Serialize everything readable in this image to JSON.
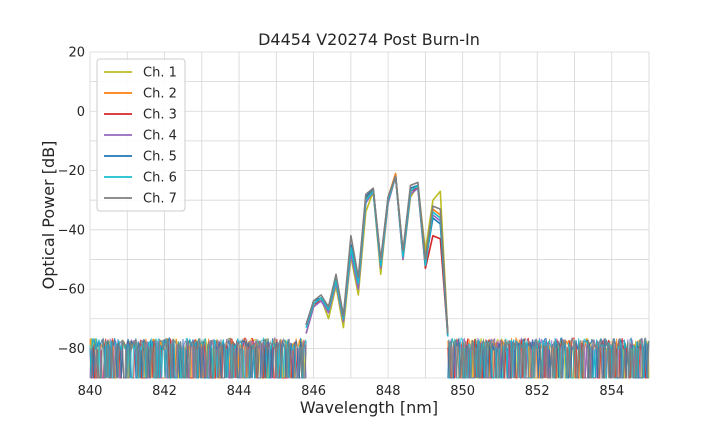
{
  "chart_data": {
    "type": "line",
    "title": "D4454 V20274 Post Burn-In",
    "xlabel": "Wavelength [nm]",
    "ylabel": "Optical Power [dB]",
    "xlim": [
      840,
      855
    ],
    "ylim": [
      -90,
      20
    ],
    "xticks": [
      840,
      842,
      844,
      846,
      848,
      850,
      852,
      854
    ],
    "yticks": [
      20,
      0,
      -20,
      -40,
      -60,
      -80
    ],
    "grid": true,
    "legend_position": "top-left",
    "noise_floor_db": -80,
    "series": [
      {
        "name": "Ch. 1",
        "color": "#bcbd22",
        "x": [
          845.8,
          846.0,
          846.2,
          846.4,
          846.6,
          846.8,
          847.0,
          847.2,
          847.4,
          847.6,
          847.8,
          848.0,
          848.2,
          848.4,
          848.6,
          848.8,
          849.0,
          849.2,
          849.4,
          849.6
        ],
        "y": [
          -75,
          -66,
          -63,
          -70,
          -59,
          -73,
          -49,
          -62,
          -34,
          -27,
          -55,
          -31,
          -22,
          -50,
          -29,
          -25,
          -47,
          -30,
          -27,
          -75
        ]
      },
      {
        "name": "Ch. 2",
        "color": "#ff7f0e",
        "x": [
          845.8,
          846.0,
          846.2,
          846.4,
          846.6,
          846.8,
          847.0,
          847.2,
          847.4,
          847.6,
          847.8,
          848.0,
          848.2,
          848.4,
          848.6,
          848.8,
          849.0,
          849.2,
          849.4,
          849.6
        ],
        "y": [
          -72,
          -65,
          -63,
          -67,
          -56,
          -70,
          -47,
          -58,
          -30,
          -26,
          -52,
          -29,
          -21,
          -48,
          -26,
          -25,
          -50,
          -33,
          -35,
          -75
        ]
      },
      {
        "name": "Ch. 3",
        "color": "#d62728",
        "x": [
          845.8,
          846.0,
          846.2,
          846.4,
          846.6,
          846.8,
          847.0,
          847.2,
          847.4,
          847.6,
          847.8,
          848.0,
          848.2,
          848.4,
          848.6,
          848.8,
          849.0,
          849.2,
          849.4,
          849.6
        ],
        "y": [
          -72,
          -65,
          -64,
          -67,
          -57,
          -70,
          -47,
          -58,
          -30,
          -27,
          -52,
          -30,
          -22,
          -49,
          -27,
          -26,
          -53,
          -42,
          -43,
          -76
        ]
      },
      {
        "name": "Ch. 4",
        "color": "#9467bd",
        "x": [
          845.8,
          846.0,
          846.2,
          846.4,
          846.6,
          846.8,
          847.0,
          847.2,
          847.4,
          847.6,
          847.8,
          848.0,
          848.2,
          848.4,
          848.6,
          848.8,
          849.0,
          849.2,
          849.4,
          849.6
        ],
        "y": [
          -75,
          -66,
          -64,
          -68,
          -58,
          -71,
          -48,
          -60,
          -31,
          -27,
          -53,
          -31,
          -22,
          -50,
          -28,
          -26,
          -52,
          -35,
          -37,
          -76
        ]
      },
      {
        "name": "Ch. 5",
        "color": "#1f77b4",
        "x": [
          845.8,
          846.0,
          846.2,
          846.4,
          846.6,
          846.8,
          847.0,
          847.2,
          847.4,
          847.6,
          847.8,
          848.0,
          848.2,
          848.4,
          848.6,
          848.8,
          849.0,
          849.2,
          849.4,
          849.6
        ],
        "y": [
          -72,
          -64,
          -63,
          -66,
          -56,
          -69,
          -45,
          -57,
          -29,
          -26,
          -51,
          -29,
          -22,
          -48,
          -26,
          -25,
          -51,
          -36,
          -38,
          -75
        ]
      },
      {
        "name": "Ch. 6",
        "color": "#17becf",
        "x": [
          845.8,
          846.0,
          846.2,
          846.4,
          846.6,
          846.8,
          847.0,
          847.2,
          847.4,
          847.6,
          847.8,
          848.0,
          848.2,
          848.4,
          848.6,
          848.8,
          849.0,
          849.2,
          849.4,
          849.6
        ],
        "y": [
          -73,
          -65,
          -63,
          -67,
          -57,
          -70,
          -46,
          -58,
          -30,
          -27,
          -52,
          -30,
          -22,
          -49,
          -27,
          -25,
          -52,
          -34,
          -36,
          -76
        ]
      },
      {
        "name": "Ch. 7",
        "color": "#7f7f7f",
        "x": [
          845.8,
          846.0,
          846.2,
          846.4,
          846.6,
          846.8,
          847.0,
          847.2,
          847.4,
          847.6,
          847.8,
          848.0,
          848.2,
          848.4,
          848.6,
          848.8,
          849.0,
          849.2,
          849.4,
          849.6
        ],
        "y": [
          -72,
          -64,
          -62,
          -66,
          -55,
          -69,
          -42,
          -56,
          -28,
          -26,
          -50,
          -29,
          -22,
          -47,
          -25,
          -24,
          -50,
          -32,
          -33,
          -75
        ]
      }
    ]
  }
}
